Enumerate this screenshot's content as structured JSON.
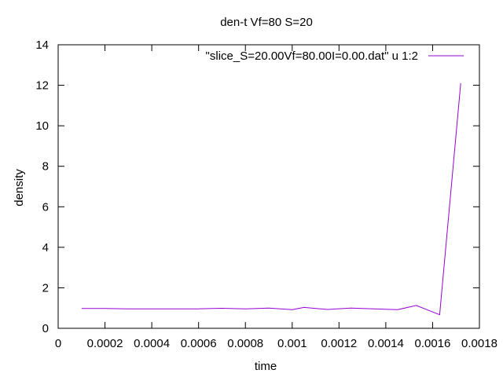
{
  "chart_data": {
    "type": "line",
    "title": "den-t Vf=80 S=20",
    "xlabel": "time",
    "ylabel": "density",
    "xlim": [
      0,
      0.0018
    ],
    "ylim": [
      0,
      14
    ],
    "xticks": [
      0,
      0.0002,
      0.0004,
      0.0006,
      0.0008,
      0.001,
      0.0012,
      0.0014,
      0.0016,
      0.0018
    ],
    "xtick_labels": [
      "0",
      "0.0002",
      "0.0004",
      "0.0006",
      "0.0008",
      "0.001",
      "0.0012",
      "0.0014",
      "0.0016",
      "0.0018"
    ],
    "yticks": [
      0,
      2,
      4,
      6,
      8,
      10,
      12,
      14
    ],
    "ytick_labels": [
      "0",
      "2",
      "4",
      "6",
      "8",
      "10",
      "12",
      "14"
    ],
    "grid": false,
    "legend_position": "top-right",
    "series": [
      {
        "name": "\"slice_S=20.00Vf=80.00I=0.00.dat\" u 1:2",
        "color": "#9400d3",
        "x": [
          0.0001,
          0.0002,
          0.0003,
          0.0004,
          0.0005,
          0.0006,
          0.0007,
          0.0008,
          0.0009,
          0.001,
          0.00105,
          0.00115,
          0.00125,
          0.00135,
          0.00145,
          0.00153,
          0.00163,
          0.00172
        ],
        "y": [
          0.98,
          0.98,
          0.96,
          0.96,
          0.96,
          0.96,
          0.99,
          0.96,
          1.0,
          0.92,
          1.03,
          0.93,
          1.0,
          0.96,
          0.92,
          1.13,
          0.67,
          12.1
        ]
      }
    ]
  }
}
